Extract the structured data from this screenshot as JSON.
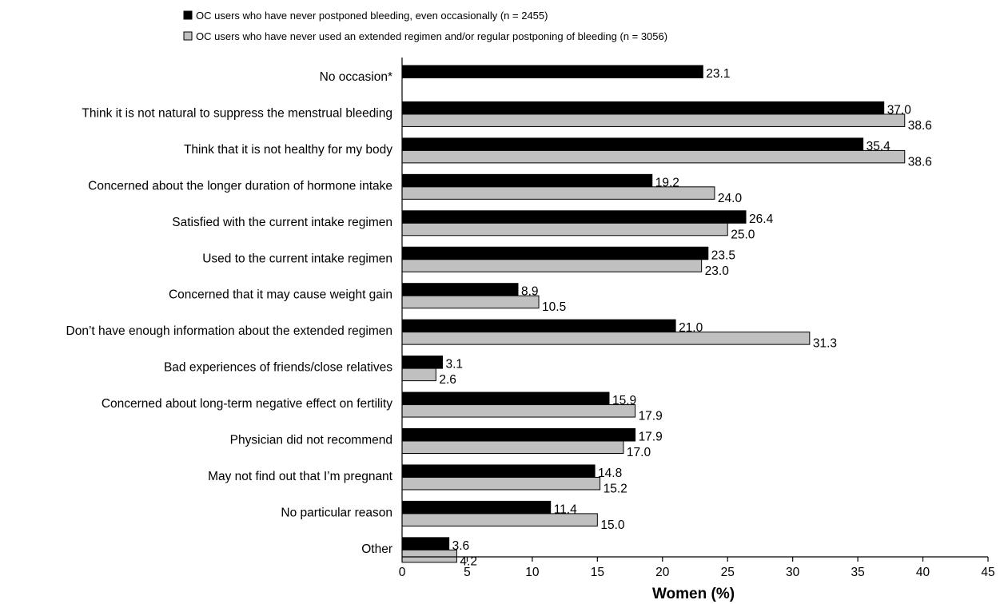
{
  "chart_data": {
    "type": "bar",
    "orientation": "horizontal",
    "categories": [
      "No occasion*",
      "Think it is not natural to suppress the menstrual bleeding",
      "Think that it is not healthy for my body",
      "Concerned about the longer duration of hormone intake",
      "Satisfied with the current intake regimen",
      "Used to the current intake regimen",
      "Concerned that it may cause weight gain",
      "Don’t have enough information about the extended regimen",
      "Bad experiences of friends/close relatives",
      "Concerned about long-term negative effect on fertility",
      "Physician did not recommend",
      "May not find out that I’m pregnant",
      "No particular reason",
      "Other"
    ],
    "series": [
      {
        "name": "OC users who have never postponed bleeding, even occasionally (n = 2455)",
        "color": "#000000",
        "values": [
          23.1,
          37.0,
          35.4,
          19.2,
          26.4,
          23.5,
          8.9,
          21.0,
          3.1,
          15.9,
          17.9,
          14.8,
          11.4,
          3.6
        ],
        "labels": [
          "23.1",
          "37.0",
          "35.4",
          "19.2",
          "26.4",
          "23.5",
          "8.9",
          "21.0",
          "3.1",
          "15.9",
          "17.9",
          "14.8",
          "11.4",
          "3.6"
        ]
      },
      {
        "name": "OC users who have never used an extended regimen and/or regular postponing of bleeding (n = 3056)",
        "color": "#c0c0c0",
        "values": [
          null,
          38.6,
          38.6,
          24.0,
          25.0,
          23.0,
          10.5,
          31.3,
          2.6,
          17.9,
          17.0,
          15.2,
          15.0,
          4.2
        ],
        "labels": [
          "",
          "38.6",
          "38.6",
          "24.0",
          "25.0",
          "23.0",
          "10.5",
          "31.3",
          "2.6",
          "17.9",
          "17.0",
          "15.2",
          "15.0",
          "4.2"
        ]
      }
    ],
    "xlabel": "Women (%)",
    "xlim": [
      0,
      45
    ],
    "xticks": [
      0,
      5,
      10,
      15,
      20,
      25,
      30,
      35,
      40,
      45
    ],
    "xtick_labels": [
      "0",
      "5",
      "10",
      "15",
      "20",
      "25",
      "30",
      "35",
      "40",
      "45"
    ],
    "grid": false,
    "legend_position": "top-left"
  }
}
